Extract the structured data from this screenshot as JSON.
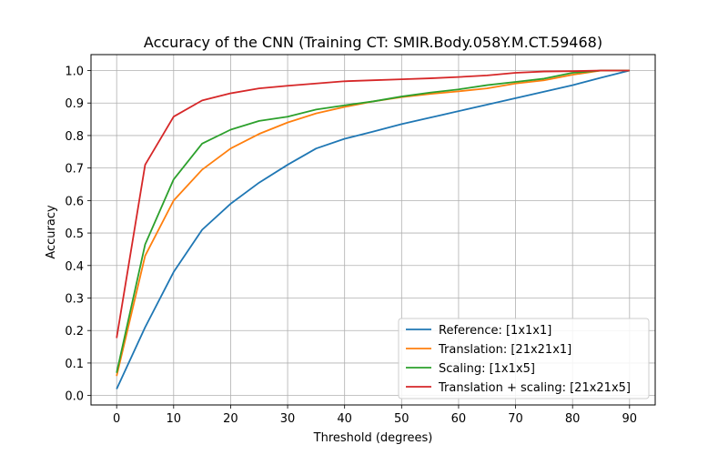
{
  "chart_data": {
    "type": "line",
    "title": "Accuracy of the CNN (Training CT: SMIR.Body.058Y.M.CT.59468)",
    "xlabel": "Threshold (degrees)",
    "ylabel": "Accuracy",
    "xlim": [
      -4.5,
      94.5
    ],
    "ylim": [
      -0.029,
      1.049
    ],
    "xticks": [
      0,
      10,
      20,
      30,
      40,
      50,
      60,
      70,
      80,
      90
    ],
    "yticks": [
      0.0,
      0.1,
      0.2,
      0.3,
      0.4,
      0.5,
      0.6,
      0.7,
      0.8,
      0.9,
      1.0
    ],
    "ytick_labels": [
      "0.0",
      "0.1",
      "0.2",
      "0.3",
      "0.4",
      "0.5",
      "0.6",
      "0.7",
      "0.8",
      "0.9",
      "1.0"
    ],
    "grid": true,
    "legend_position": "lower-right",
    "x": [
      0,
      5,
      10,
      15,
      20,
      25,
      30,
      35,
      40,
      45,
      50,
      55,
      60,
      65,
      70,
      75,
      80,
      85,
      90
    ],
    "series": [
      {
        "name": "Reference: [1x1x1]",
        "color": "#1f77b4",
        "values": [
          0.02,
          0.21,
          0.38,
          0.51,
          0.59,
          0.655,
          0.71,
          0.76,
          0.79,
          0.812,
          0.835,
          0.855,
          0.875,
          0.895,
          0.915,
          0.935,
          0.955,
          0.978,
          1.0
        ]
      },
      {
        "name": "Translation: [21x21x1]",
        "color": "#ff7f0e",
        "values": [
          0.06,
          0.43,
          0.6,
          0.695,
          0.76,
          0.805,
          0.84,
          0.868,
          0.888,
          0.905,
          0.918,
          0.928,
          0.936,
          0.945,
          0.96,
          0.97,
          0.987,
          1.0,
          1.0
        ]
      },
      {
        "name": "Scaling: [1x1x5]",
        "color": "#2ca02c",
        "values": [
          0.07,
          0.465,
          0.665,
          0.775,
          0.818,
          0.845,
          0.858,
          0.88,
          0.893,
          0.905,
          0.92,
          0.932,
          0.942,
          0.955,
          0.965,
          0.975,
          0.993,
          1.0,
          1.0
        ]
      },
      {
        "name": "Translation + scaling: [21x21x5]",
        "color": "#d62728",
        "values": [
          0.177,
          0.71,
          0.858,
          0.908,
          0.93,
          0.945,
          0.953,
          0.96,
          0.967,
          0.97,
          0.973,
          0.976,
          0.98,
          0.985,
          0.993,
          0.997,
          0.998,
          1.0,
          1.0
        ]
      }
    ]
  }
}
